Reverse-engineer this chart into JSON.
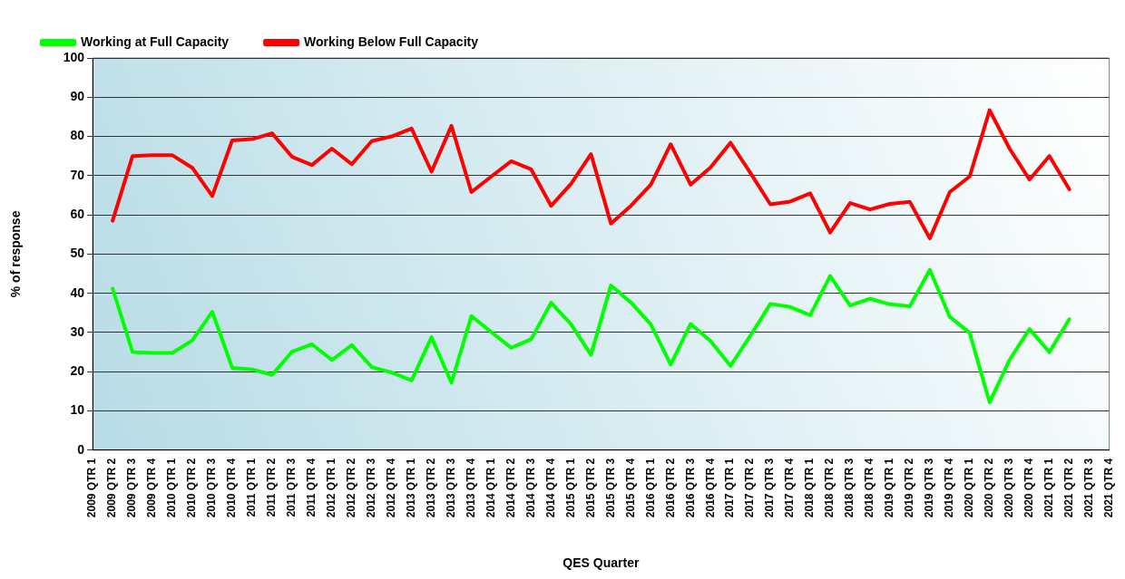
{
  "chart_data": {
    "type": "line",
    "xlabel": "QES Quarter",
    "ylabel": "% of response",
    "categories": [
      "2009 QTR 1",
      "2009 QTR 2",
      "2009 QTR 3",
      "2009 QTR 4",
      "2010 QTR 1",
      "2010 QTR 2",
      "2010 QTR 3",
      "2010 QTR 4",
      "2011 QTR 1",
      "2011 QTR 2",
      "2011 QTR 3",
      "2011 QTR 4",
      "2012 QTR 1",
      "2012 QTR 2",
      "2012 QTR 3",
      "2012 QTR 4",
      "2013 QTR 1",
      "2013 QTR 2",
      "2013 QTR 3",
      "2013 QTR 4",
      "2014 QTR 1",
      "2014 QTR 2",
      "2014 QTR 3",
      "2014 QTR 4",
      "2015 QTR 1",
      "2015 QTR 2",
      "2015 QTR 3",
      "2015 QTR 4",
      "2016 QTR 1",
      "2016 QTR 2",
      "2016 QTR 3",
      "2016 QTR 4",
      "2017 QTR 1",
      "2017 QTR 2",
      "2017 QTR 3",
      "2017 QTR 4",
      "2018 QTR 1",
      "2018 QTR 2",
      "2018 QTR 3",
      "2018 QTR 4",
      "2019 QTR 1",
      "2019 QTR 2",
      "2019 QTR 3",
      "2019 QTR 4",
      "2020 QTR 1",
      "2020 QTR 2",
      "2020 QTR 3",
      "2020 QTR 4",
      "2021 QTR 1",
      "2021 QTR 2",
      "2021 QTR 3",
      "2021 QTR 4"
    ],
    "series": [
      {
        "name": "Working at Full Capacity",
        "color": "#00ff00",
        "values": [
          null,
          41.2,
          25,
          24.8,
          24.8,
          28,
          35.3,
          21,
          20.6,
          19.2,
          25.1,
          27,
          23,
          26.8,
          21.2,
          19.8,
          17.8,
          28.8,
          17.2,
          34.2,
          30.1,
          26.1,
          28.3,
          37.6,
          32.1,
          24.3,
          42,
          37.7,
          32.1,
          21.8,
          32.2,
          27.8,
          21.5,
          29.2,
          37.3,
          36.5,
          34.4,
          44.4,
          36.9,
          38.6,
          37.2,
          36.7,
          46,
          34,
          29.9,
          12.2,
          23,
          30.9,
          25,
          33.4,
          null,
          null
        ]
      },
      {
        "name": "Working Below Full Capacity",
        "color": "#ff0000",
        "values": [
          null,
          58.5,
          75,
          75.2,
          75.2,
          72,
          64.8,
          79,
          79.3,
          80.8,
          74.8,
          72.7,
          76.9,
          72.9,
          78.8,
          80,
          82,
          71,
          82.7,
          65.8,
          69.8,
          73.7,
          71.6,
          62.3,
          67.9,
          75.5,
          57.8,
          62.3,
          67.7,
          78,
          67.7,
          72.1,
          78.4,
          70.7,
          62.7,
          63.4,
          65.5,
          55.5,
          63,
          61.4,
          62.8,
          63.3,
          54,
          65.8,
          69.8,
          86.7,
          76.9,
          69,
          75,
          66.5,
          null,
          null
        ]
      }
    ],
    "ylim": [
      0,
      100
    ],
    "yticks": [
      0,
      10,
      20,
      30,
      40,
      50,
      60,
      70,
      80,
      90,
      100
    ],
    "grid": "y",
    "legend": "top left",
    "marker": "none",
    "line_style": "solid"
  }
}
